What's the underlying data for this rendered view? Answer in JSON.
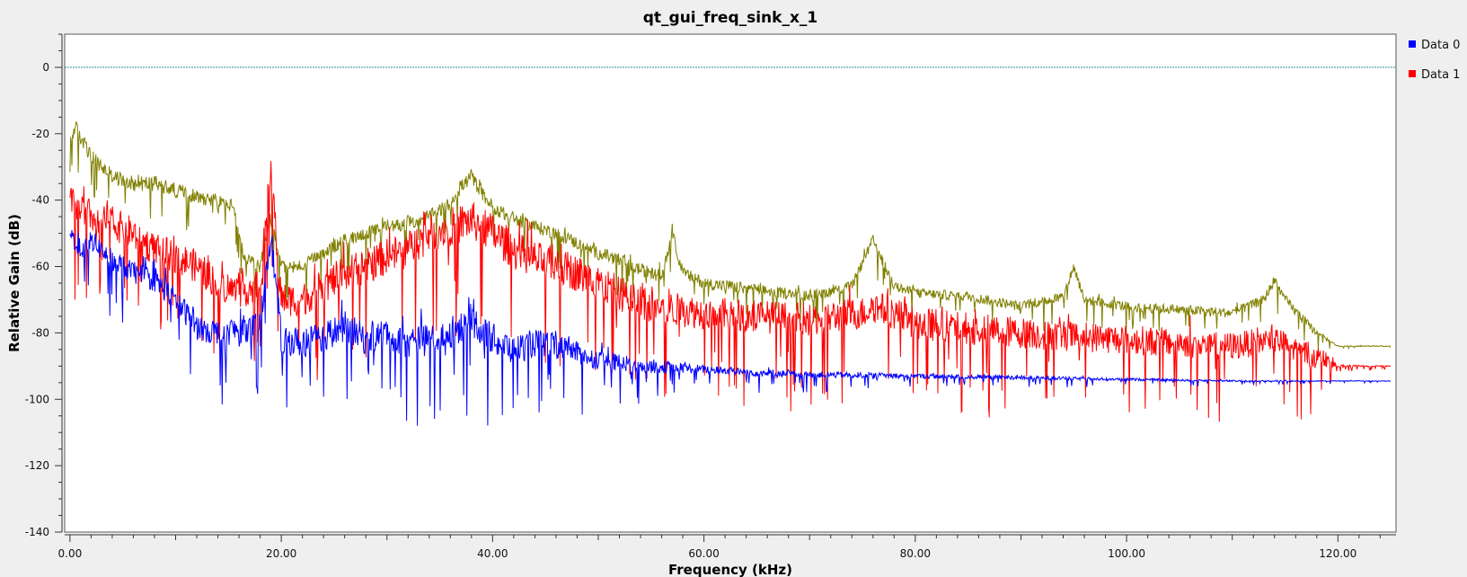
{
  "chart_data": {
    "type": "line",
    "title": "qt_gui_freq_sink_x_1",
    "xlabel": "Frequency (kHz)",
    "ylabel": "Relative Gain (dB)",
    "xlim": [
      -0.5,
      125.5
    ],
    "ylim": [
      -140,
      10
    ],
    "x_ticks": [
      0,
      20,
      40,
      60,
      80,
      100,
      120
    ],
    "x_tick_labels": [
      "0.00",
      "20.00",
      "40.00",
      "60.00",
      "80.00",
      "100.00",
      "120.00"
    ],
    "y_ticks": [
      0,
      -20,
      -40,
      -60,
      -80,
      -100,
      -120,
      -140
    ],
    "y_tick_labels": [
      "0",
      "-20",
      "-40",
      "-60",
      "-80",
      "-100",
      "-120",
      "-140"
    ],
    "reference_line": {
      "y": 0,
      "color": "#2f8f8f"
    },
    "grid": false,
    "legend": {
      "placement": "top-right"
    },
    "series": [
      {
        "name": "Data 0",
        "color": "#0000ff",
        "envelope": {
          "x": [
            0,
            1,
            2,
            4,
            6,
            8,
            10,
            12,
            14,
            16,
            18,
            19,
            20,
            22,
            24,
            26,
            28,
            30,
            32,
            34,
            36,
            38,
            40,
            42,
            44,
            46,
            48,
            50,
            52,
            55,
            60,
            65,
            70,
            80,
            90,
            100,
            110,
            120,
            125
          ],
          "y": [
            -50,
            -55,
            -52,
            -58,
            -62,
            -64,
            -70,
            -78,
            -80,
            -79,
            -78,
            -50,
            -82,
            -83,
            -81,
            -78,
            -82,
            -80,
            -83,
            -82,
            -80,
            -76,
            -82,
            -85,
            -83,
            -84,
            -86,
            -88,
            -89,
            -90,
            -91,
            -92,
            -92.5,
            -93,
            -93.5,
            -94,
            -94.5,
            -94.5,
            -94.5
          ]
        },
        "noise": {
          "x": [
            0,
            20,
            40,
            50,
            60,
            70,
            80,
            100,
            120,
            125
          ],
          "amplitude_db": [
            6,
            9,
            10,
            6,
            2.5,
            2,
            1.5,
            0.8,
            0.2,
            0.2
          ]
        }
      },
      {
        "name": "Data 1",
        "color": "#ff0000",
        "envelope": {
          "x": [
            0,
            1,
            2,
            4,
            6,
            8,
            10,
            12,
            14,
            16,
            18,
            19,
            20,
            22,
            24,
            26,
            28,
            30,
            32,
            34,
            36,
            38,
            40,
            42,
            44,
            46,
            48,
            50,
            52,
            55,
            60,
            65,
            70,
            75,
            76,
            78,
            80,
            90,
            100,
            110,
            114,
            116,
            118,
            120,
            125
          ],
          "y": [
            -40,
            -42,
            -45,
            -47,
            -50,
            -55,
            -57,
            -60,
            -65,
            -68,
            -65,
            -30,
            -70,
            -70,
            -66,
            -62,
            -60,
            -57,
            -55,
            -50,
            -48,
            -46,
            -50,
            -55,
            -58,
            -60,
            -62,
            -65,
            -68,
            -72,
            -74,
            -75,
            -76,
            -74,
            -72,
            -74,
            -77,
            -80,
            -82,
            -84,
            -82,
            -85,
            -87,
            -90,
            -90
          ]
        },
        "noise": {
          "x": [
            0,
            20,
            40,
            60,
            80,
            100,
            118,
            120,
            125
          ],
          "amplitude_db": [
            10,
            10,
            12,
            10,
            10,
            9,
            8,
            0.8,
            0.3
          ]
        }
      },
      {
        "name": "",
        "color": "#808000",
        "envelope": {
          "x": [
            0,
            0.5,
            2,
            4,
            6,
            8,
            10,
            12,
            14,
            15.5,
            16.5,
            18,
            19,
            20,
            22,
            24,
            26,
            28,
            30,
            32,
            34,
            36,
            37,
            38,
            39,
            40,
            42,
            44,
            46,
            48,
            50,
            52,
            54,
            56,
            57,
            58,
            60,
            65,
            70,
            74,
            76,
            78,
            80,
            85,
            90,
            94,
            95,
            96,
            100,
            105,
            110,
            113,
            114,
            115,
            117,
            118,
            119,
            120,
            125
          ],
          "y": [
            -22,
            -18,
            -27,
            -33,
            -35,
            -35,
            -37,
            -39,
            -40,
            -42,
            -58,
            -60,
            -45,
            -60,
            -60,
            -56,
            -52,
            -50,
            -48,
            -47,
            -45,
            -41,
            -36,
            -33,
            -38,
            -42,
            -46,
            -48,
            -50,
            -53,
            -56,
            -58,
            -61,
            -63,
            -50,
            -62,
            -65,
            -67,
            -69,
            -66,
            -52,
            -66,
            -68,
            -69,
            -72,
            -69,
            -60,
            -70,
            -72,
            -73,
            -74,
            -70,
            -64,
            -70,
            -77,
            -80,
            -82,
            -84,
            -84
          ]
        },
        "noise": {
          "x": [
            0,
            20,
            50,
            80,
            100,
            117,
            119,
            120,
            125
          ],
          "amplitude_db": [
            5,
            4,
            4,
            3,
            3,
            3,
            1,
            0.3,
            0.2
          ]
        }
      }
    ]
  }
}
